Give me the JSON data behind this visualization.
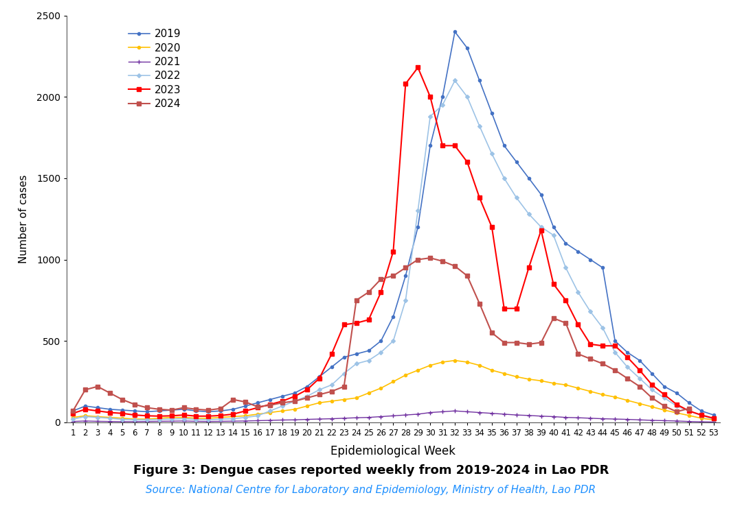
{
  "title": "Figure 3: Dengue cases reported weekly from 2019-2024 in Lao PDR",
  "source": "Source: National Centre for Laboratory and Epidemiology, Ministry of Health, Lao PDR",
  "xlabel": "Epidemiological Week",
  "ylabel": "Number of cases",
  "ylim": [
    0,
    2500
  ],
  "yticks": [
    0,
    500,
    1000,
    1500,
    2000,
    2500
  ],
  "weeks": [
    1,
    2,
    3,
    4,
    5,
    6,
    7,
    8,
    9,
    10,
    11,
    12,
    13,
    14,
    15,
    16,
    17,
    18,
    19,
    20,
    21,
    22,
    23,
    24,
    25,
    26,
    27,
    28,
    29,
    30,
    31,
    32,
    33,
    34,
    35,
    36,
    37,
    38,
    39,
    40,
    41,
    42,
    43,
    44,
    45,
    46,
    47,
    48,
    49,
    50,
    51,
    52,
    53
  ],
  "series": {
    "2019": {
      "color": "#4472C4",
      "marker": "o",
      "markersize": 3,
      "linewidth": 1.2,
      "data": [
        70,
        100,
        90,
        80,
        75,
        70,
        65,
        70,
        75,
        80,
        70,
        65,
        70,
        80,
        100,
        120,
        140,
        160,
        180,
        220,
        280,
        340,
        400,
        420,
        440,
        500,
        650,
        900,
        1200,
        1700,
        2000,
        2400,
        2300,
        2100,
        1900,
        1700,
        1600,
        1500,
        1400,
        1200,
        1100,
        1050,
        1000,
        950,
        500,
        430,
        380,
        300,
        220,
        180,
        120,
        70,
        45
      ]
    },
    "2020": {
      "color": "#FFC000",
      "marker": "o",
      "markersize": 3,
      "linewidth": 1.2,
      "data": [
        30,
        40,
        35,
        30,
        25,
        20,
        20,
        25,
        30,
        30,
        25,
        25,
        30,
        35,
        40,
        50,
        60,
        70,
        80,
        100,
        120,
        130,
        140,
        150,
        180,
        210,
        250,
        290,
        320,
        350,
        370,
        380,
        370,
        350,
        320,
        300,
        280,
        265,
        255,
        240,
        230,
        210,
        190,
        170,
        155,
        135,
        115,
        95,
        75,
        58,
        42,
        25,
        15
      ]
    },
    "2021": {
      "color": "#7030A0",
      "marker": "+",
      "markersize": 4,
      "linewidth": 1.0,
      "data": [
        5,
        8,
        6,
        5,
        4,
        4,
        5,
        6,
        7,
        8,
        6,
        5,
        6,
        7,
        8,
        10,
        12,
        14,
        15,
        18,
        20,
        22,
        25,
        28,
        30,
        35,
        40,
        45,
        50,
        60,
        65,
        70,
        65,
        60,
        55,
        50,
        45,
        42,
        38,
        35,
        30,
        28,
        25,
        22,
        20,
        18,
        15,
        12,
        10,
        8,
        5,
        3,
        2
      ]
    },
    "2022": {
      "color": "#9DC3E6",
      "marker": "D",
      "markersize": 3,
      "linewidth": 1.2,
      "data": [
        20,
        35,
        30,
        25,
        18,
        15,
        15,
        18,
        20,
        22,
        18,
        16,
        20,
        22,
        30,
        40,
        70,
        100,
        130,
        160,
        200,
        230,
        300,
        360,
        380,
        430,
        500,
        750,
        1300,
        1880,
        1950,
        2100,
        2000,
        1820,
        1650,
        1500,
        1380,
        1280,
        1200,
        1150,
        950,
        800,
        680,
        580,
        430,
        340,
        270,
        200,
        150,
        100,
        70,
        42,
        20
      ]
    },
    "2023": {
      "color": "#FF0000",
      "marker": "s",
      "markersize": 4,
      "linewidth": 1.5,
      "data": [
        55,
        80,
        70,
        60,
        55,
        45,
        40,
        38,
        40,
        45,
        38,
        38,
        42,
        50,
        70,
        90,
        110,
        130,
        160,
        200,
        270,
        420,
        600,
        610,
        630,
        800,
        1050,
        2080,
        2180,
        2000,
        1700,
        1700,
        1600,
        1380,
        1200,
        700,
        700,
        950,
        1180,
        850,
        750,
        600,
        480,
        470,
        470,
        400,
        320,
        230,
        170,
        110,
        70,
        45,
        25
      ]
    },
    "2024": {
      "color": "#C0504D",
      "marker": "s",
      "markersize": 4,
      "linewidth": 1.5,
      "data": [
        70,
        200,
        220,
        180,
        140,
        110,
        90,
        80,
        75,
        90,
        80,
        75,
        85,
        140,
        125,
        95,
        105,
        120,
        130,
        150,
        170,
        190,
        220,
        750,
        800,
        880,
        900,
        950,
        1000,
        1010,
        990,
        960,
        900,
        730,
        550,
        490,
        490,
        480,
        490,
        640,
        610,
        420,
        390,
        360,
        320,
        270,
        220,
        150,
        100,
        65,
        85,
        null,
        null
      ]
    }
  },
  "legend_order": [
    "2019",
    "2020",
    "2021",
    "2022",
    "2023",
    "2024"
  ],
  "background_color": "#FFFFFF"
}
